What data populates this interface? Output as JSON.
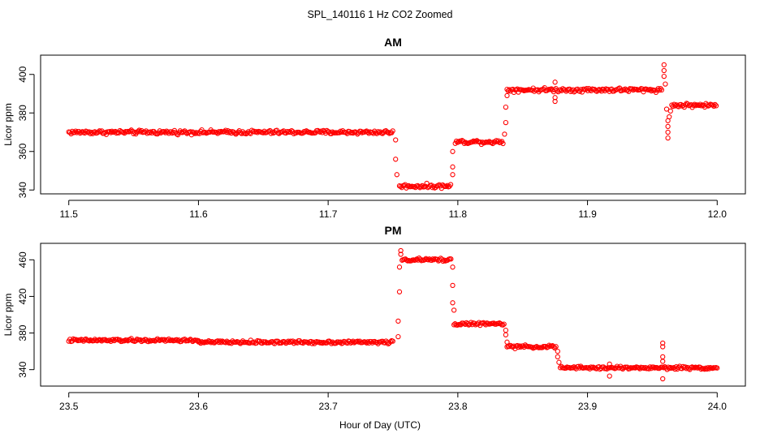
{
  "figure": {
    "title": "SPL_140116  1 Hz CO2 Zoomed",
    "xlabel": "Hour of Day (UTC)"
  },
  "colors": {
    "points": "#ff0000",
    "axes": "#000000",
    "background": "#ffffff"
  },
  "chart_data": [
    {
      "type": "scatter",
      "title": "AM",
      "xlabel": "Hour of Day (UTC)",
      "ylabel": "Licor ppm",
      "xlim": [
        11.5,
        12.0
      ],
      "ylim": [
        338,
        410
      ],
      "xticks": [
        "11.5",
        "11.6",
        "11.7",
        "11.8",
        "11.9",
        "12.0"
      ],
      "yticks": [
        "340",
        "360",
        "380",
        "400"
      ],
      "grid": false,
      "marker": "open-circle",
      "noise": 1.0,
      "segments": [
        {
          "x_start": 11.5,
          "x_end": 11.75,
          "y": 370
        },
        {
          "x_start": 11.755,
          "x_end": 11.795,
          "y": 342
        },
        {
          "x_start": 11.798,
          "x_end": 11.835,
          "y": 365
        },
        {
          "x_start": 11.838,
          "x_end": 11.958,
          "y": 392
        },
        {
          "x_start": 11.965,
          "x_end": 12.0,
          "y": 384
        }
      ],
      "transitions": [
        {
          "x": 11.752,
          "y": 366
        },
        {
          "x": 11.752,
          "y": 356
        },
        {
          "x": 11.753,
          "y": 348
        },
        {
          "x": 11.796,
          "y": 352
        },
        {
          "x": 11.796,
          "y": 360
        },
        {
          "x": 11.796,
          "y": 348
        },
        {
          "x": 11.836,
          "y": 369
        },
        {
          "x": 11.837,
          "y": 375
        },
        {
          "x": 11.837,
          "y": 383
        },
        {
          "x": 11.838,
          "y": 389
        },
        {
          "x": 11.875,
          "y": 396
        },
        {
          "x": 11.875,
          "y": 388
        },
        {
          "x": 11.875,
          "y": 386
        },
        {
          "x": 11.959,
          "y": 405
        },
        {
          "x": 11.959,
          "y": 402
        },
        {
          "x": 11.959,
          "y": 399
        },
        {
          "x": 11.96,
          "y": 395
        },
        {
          "x": 11.961,
          "y": 382
        },
        {
          "x": 11.962,
          "y": 376
        },
        {
          "x": 11.962,
          "y": 373
        },
        {
          "x": 11.962,
          "y": 370
        },
        {
          "x": 11.962,
          "y": 367
        },
        {
          "x": 11.963,
          "y": 378
        },
        {
          "x": 11.964,
          "y": 381
        }
      ]
    },
    {
      "type": "scatter",
      "title": "PM",
      "xlabel": "Hour of Day (UTC)",
      "ylabel": "Licor ppm",
      "xlim": [
        23.5,
        24.0
      ],
      "ylim": [
        322,
        478
      ],
      "xticks": [
        "23.5",
        "23.6",
        "23.7",
        "23.8",
        "23.9",
        "24.0"
      ],
      "yticks": [
        "340",
        "380",
        "420",
        "460"
      ],
      "grid": false,
      "marker": "open-circle",
      "noise": 1.6,
      "segments": [
        {
          "x_start": 23.5,
          "x_end": 23.6,
          "y": 372
        },
        {
          "x_start": 23.6,
          "x_end": 23.75,
          "y": 370
        },
        {
          "x_start": 23.757,
          "x_end": 23.795,
          "y": 460
        },
        {
          "x_start": 23.797,
          "x_end": 23.836,
          "y": 390
        },
        {
          "x_start": 23.838,
          "x_end": 23.876,
          "y": 365
        },
        {
          "x_start": 23.879,
          "x_end": 24.0,
          "y": 342
        }
      ],
      "transitions": [
        {
          "x": 23.754,
          "y": 376
        },
        {
          "x": 23.754,
          "y": 393
        },
        {
          "x": 23.755,
          "y": 425
        },
        {
          "x": 23.755,
          "y": 452
        },
        {
          "x": 23.756,
          "y": 470
        },
        {
          "x": 23.756,
          "y": 466
        },
        {
          "x": 23.796,
          "y": 452
        },
        {
          "x": 23.796,
          "y": 432
        },
        {
          "x": 23.796,
          "y": 413
        },
        {
          "x": 23.797,
          "y": 405
        },
        {
          "x": 23.837,
          "y": 383
        },
        {
          "x": 23.837,
          "y": 378
        },
        {
          "x": 23.838,
          "y": 370
        },
        {
          "x": 23.877,
          "y": 360
        },
        {
          "x": 23.877,
          "y": 354
        },
        {
          "x": 23.878,
          "y": 348
        },
        {
          "x": 23.917,
          "y": 346
        },
        {
          "x": 23.917,
          "y": 333
        },
        {
          "x": 23.958,
          "y": 369
        },
        {
          "x": 23.958,
          "y": 365
        },
        {
          "x": 23.958,
          "y": 354
        },
        {
          "x": 23.958,
          "y": 349
        },
        {
          "x": 23.958,
          "y": 330
        }
      ]
    }
  ]
}
